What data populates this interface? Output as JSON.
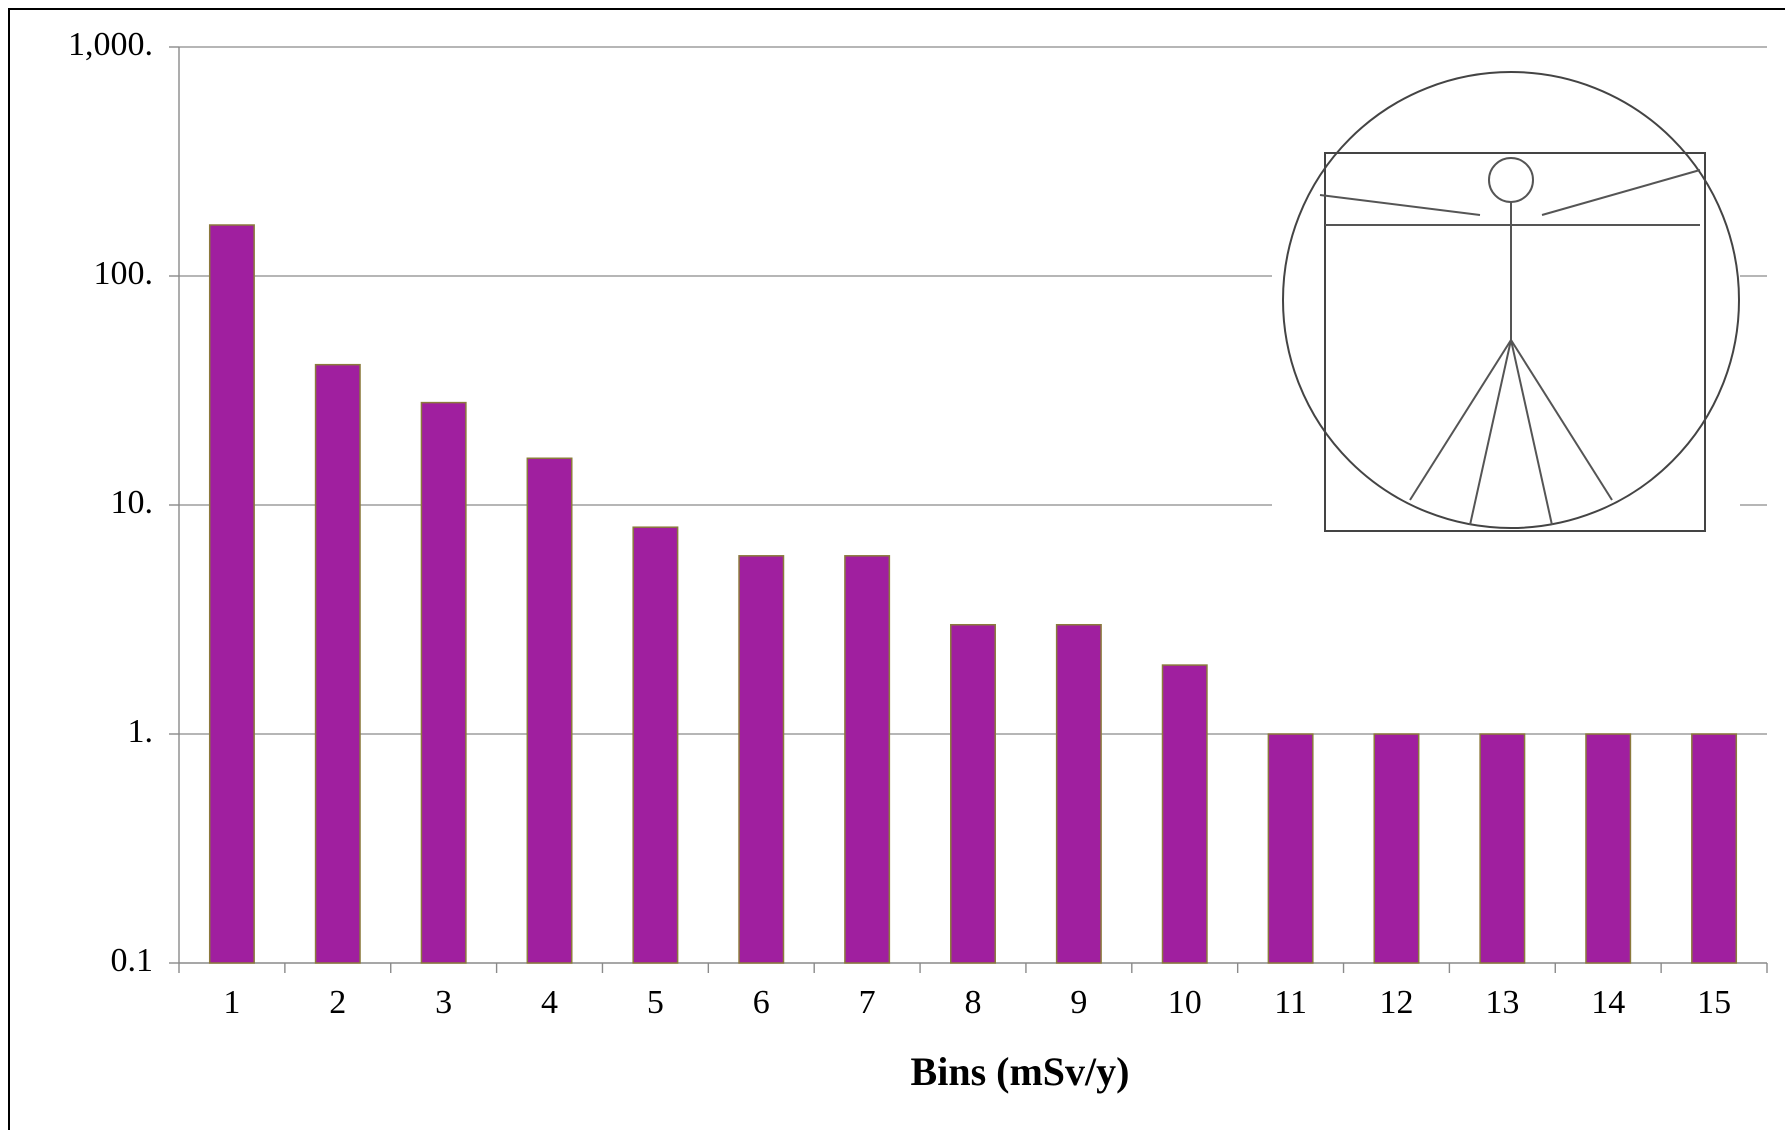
{
  "chart_data": {
    "type": "bar",
    "x_label": "Bins (mSv/y)",
    "categories": [
      "1",
      "2",
      "3",
      "4",
      "5",
      "6",
      "7",
      "8",
      "9",
      "10",
      "11",
      "12",
      "13",
      "14",
      "15"
    ],
    "values": [
      167,
      41,
      28,
      16,
      8,
      6,
      6,
      3,
      3,
      2,
      1,
      1,
      1,
      1,
      1
    ],
    "color": "#a01f9f",
    "y_scale": "log",
    "ylim": [
      0.1,
      1000
    ],
    "yticks": [
      0.1,
      {
        "value": 1,
        "label": "1."
      },
      {
        "value": 10,
        "label": "10."
      },
      {
        "value": 100,
        "label": "100."
      },
      {
        "value": 1000,
        "label": "1,000."
      }
    ],
    "grid": true
  }
}
